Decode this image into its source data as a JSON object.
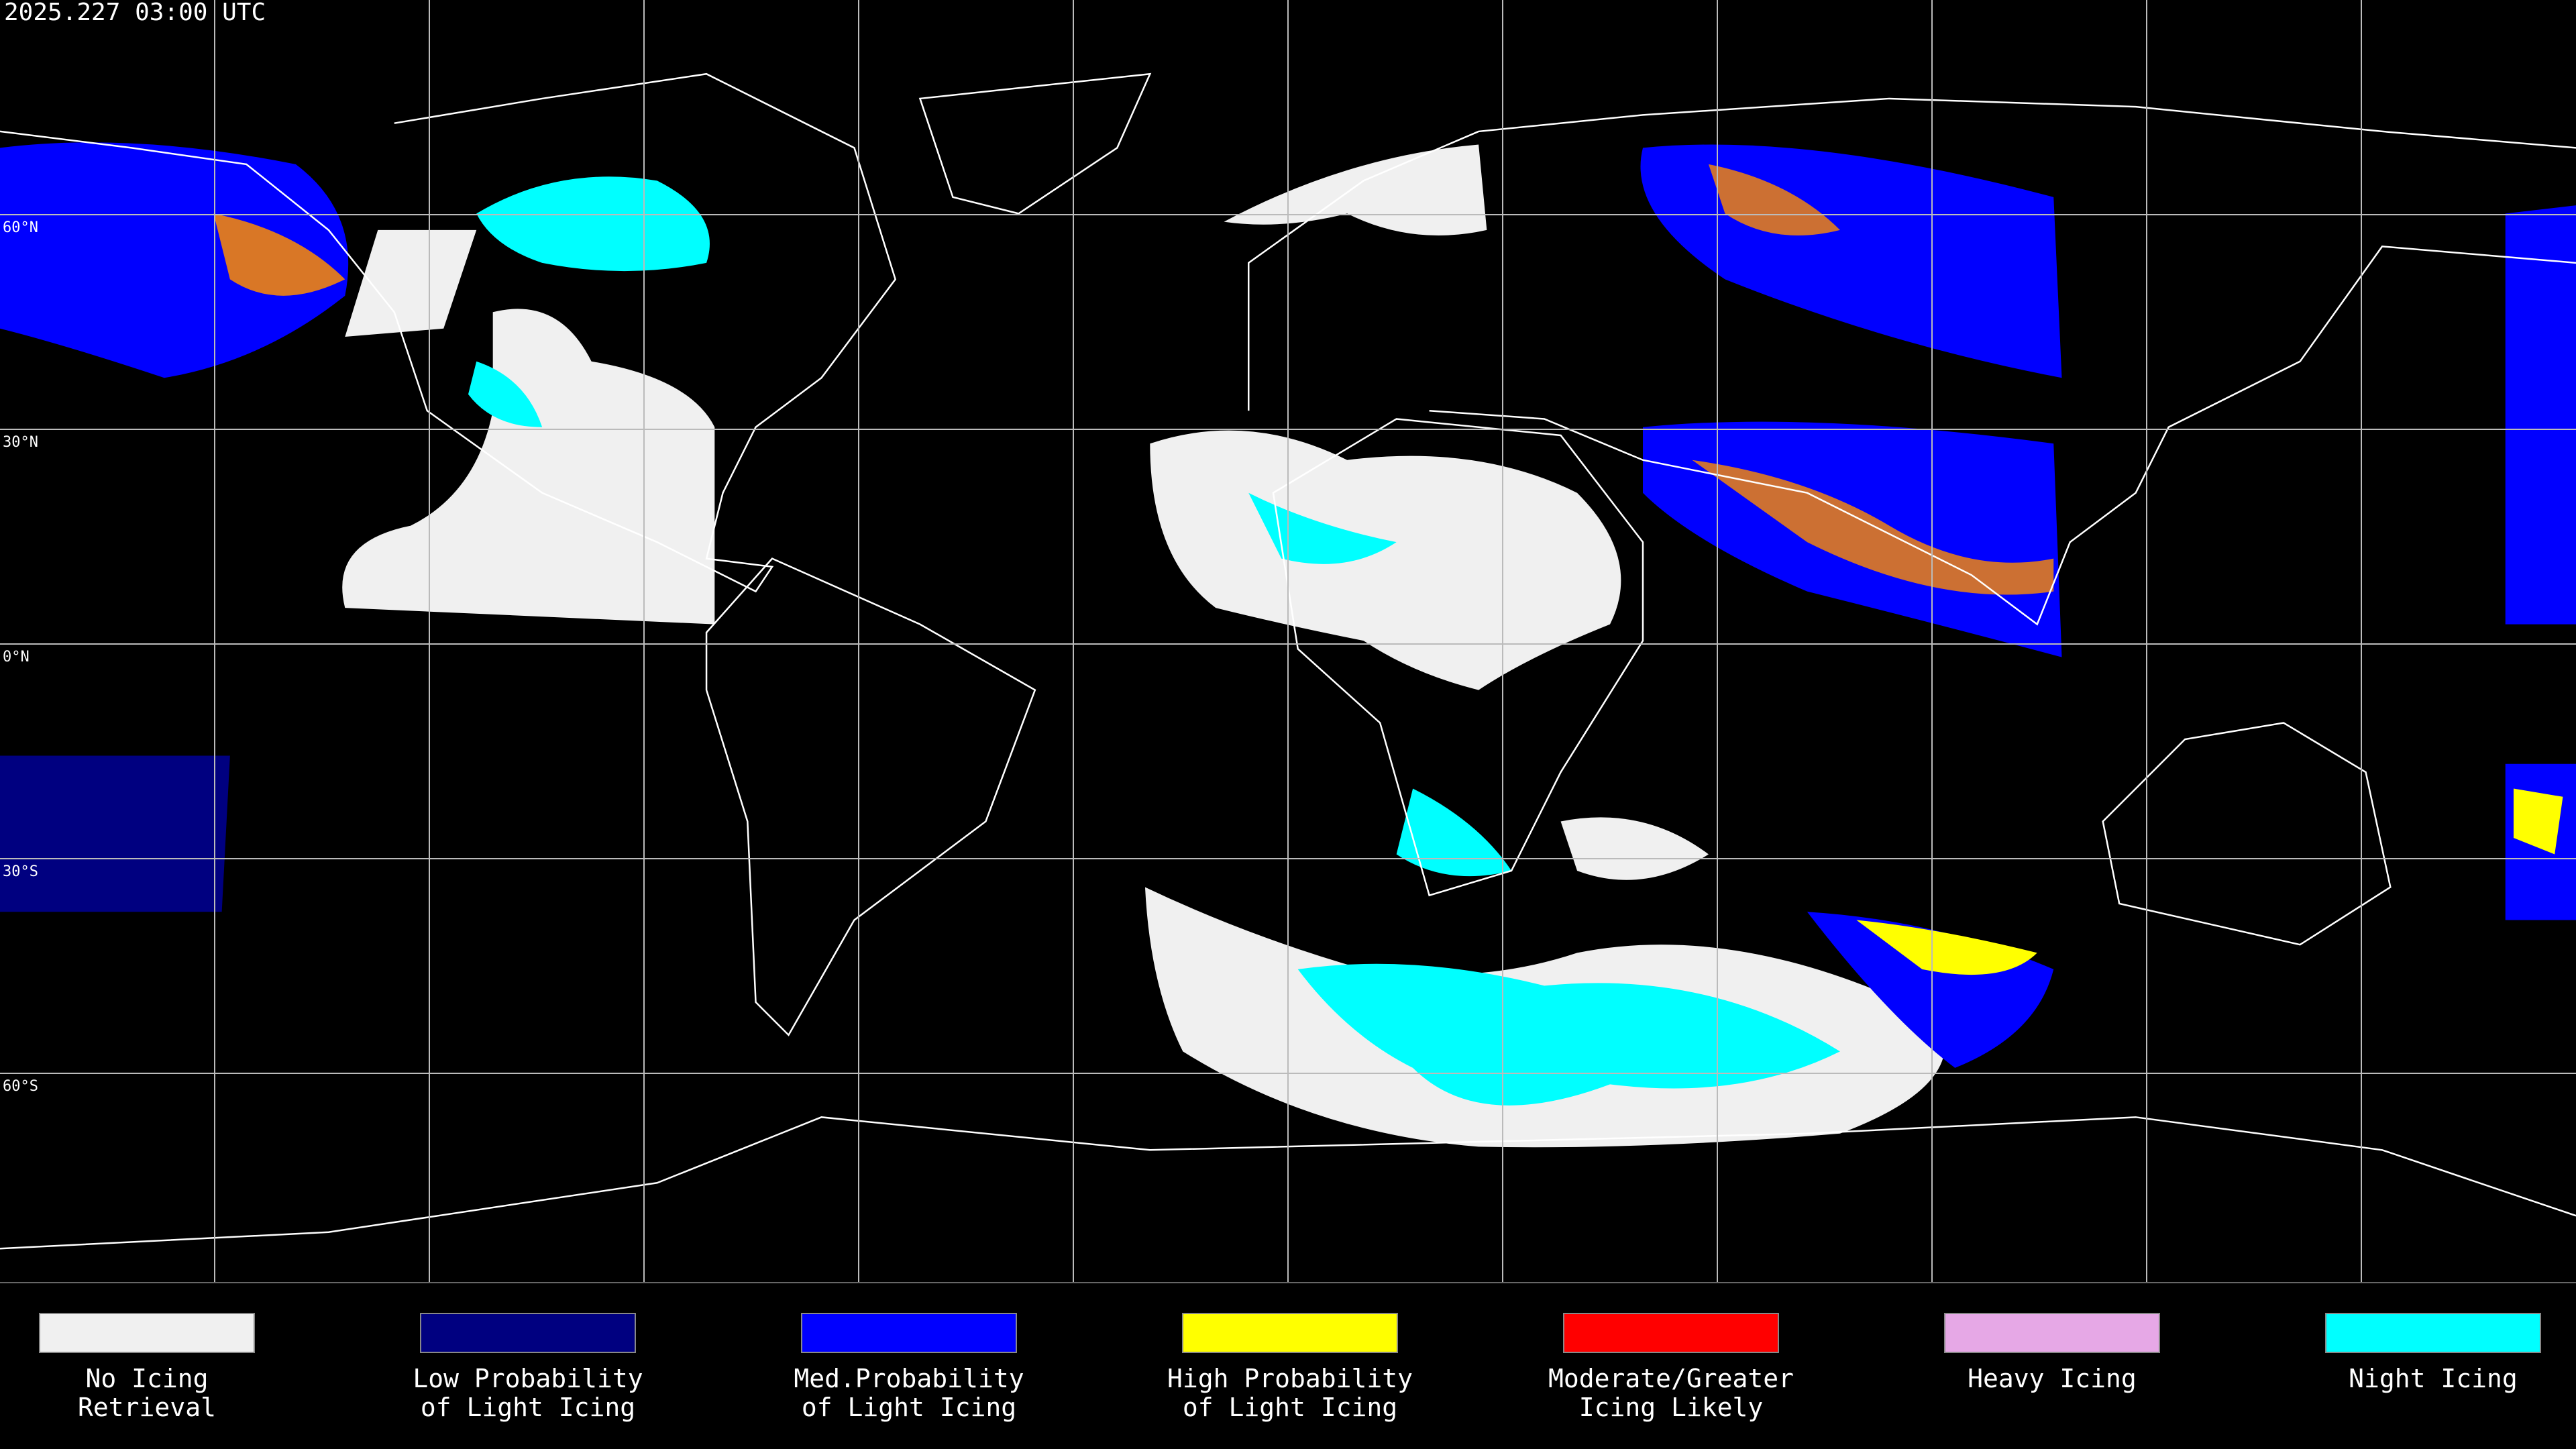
{
  "header": {
    "timestamp": "2025.227 03:00 UTC"
  },
  "latitude_labels": [
    "60°N",
    "30°N",
    "0°N",
    "30°S",
    "60°S"
  ],
  "legend": [
    {
      "lines": [
        "No Icing",
        "Retrieval"
      ],
      "color": "#f0f0f0"
    },
    {
      "lines": [
        "Low Probability",
        "of Light Icing"
      ],
      "color": "#000080"
    },
    {
      "lines": [
        "Med.Probability",
        "of Light Icing"
      ],
      "color": "#0000ff"
    },
    {
      "lines": [
        "High Probability",
        "of Light Icing"
      ],
      "color": "#ffff00"
    },
    {
      "lines": [
        "Moderate/Greater",
        "Icing Likely"
      ],
      "color": "#ff0000"
    },
    {
      "lines": [
        "Heavy Icing"
      ],
      "color": "#e6a8e6"
    },
    {
      "lines": [
        "Night Icing"
      ],
      "color": "#00ffff"
    }
  ]
}
